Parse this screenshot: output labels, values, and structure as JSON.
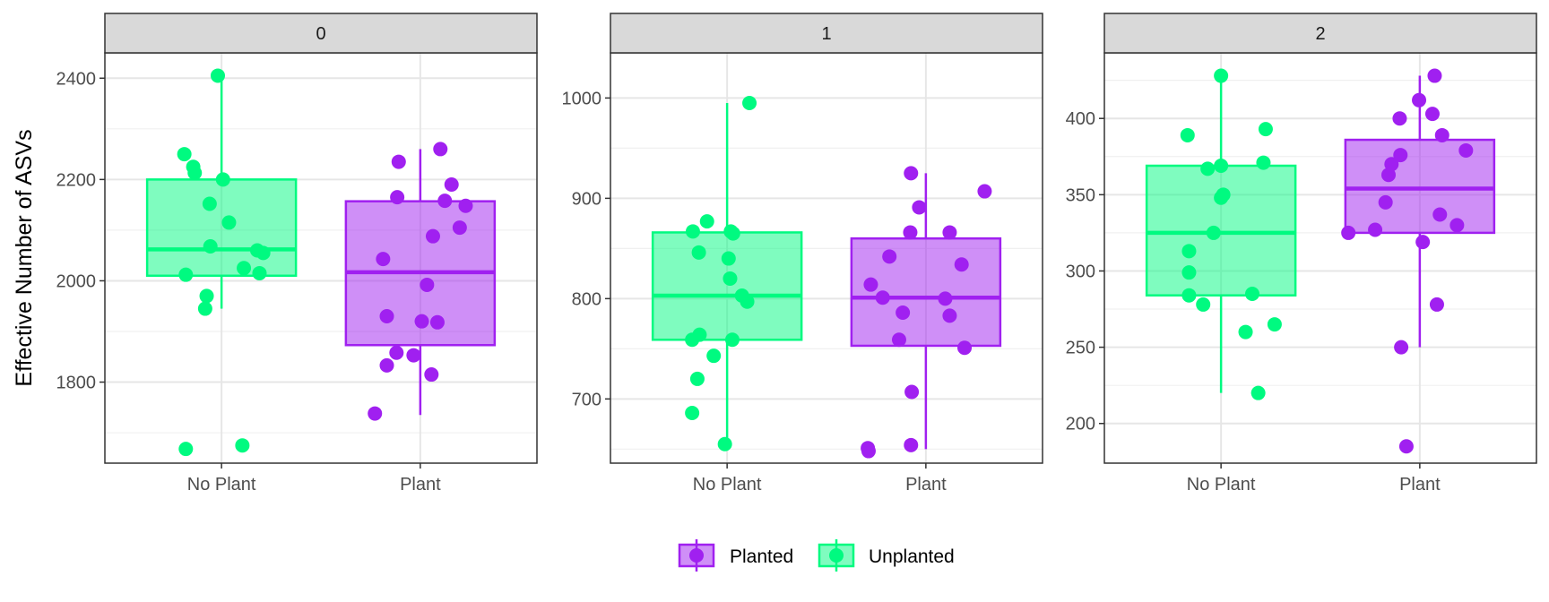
{
  "chart_data": {
    "type": "box",
    "ylabel": "Effective Number of ASVs",
    "colors": {
      "Planted": "#A020F0",
      "Unplanted": "#00FA80"
    },
    "legend": {
      "position": "bottom",
      "items": [
        {
          "name": "Planted",
          "color": "#A020F0"
        },
        {
          "name": "Unplanted",
          "color": "#00FA80"
        }
      ]
    },
    "categories": [
      "No Plant",
      "Plant"
    ],
    "facets": [
      {
        "label": "0",
        "ylim": [
          1640,
          2450
        ],
        "yticks": [
          1800,
          2000,
          2200,
          2400
        ],
        "groups": [
          {
            "category": "No Plant",
            "series": "Unplanted",
            "box": {
              "lower_whisker": 1945,
              "q1": 2010,
              "median": 2062,
              "q3": 2200,
              "upper_whisker": 2405
            },
            "points": [
              [
                -0.05,
                2405
              ],
              [
                -0.5,
                2250
              ],
              [
                -0.38,
                2225
              ],
              [
                -0.36,
                2213
              ],
              [
                0.02,
                2200
              ],
              [
                -0.16,
                2152
              ],
              [
                0.1,
                2115
              ],
              [
                -0.15,
                2068
              ],
              [
                0.48,
                2060
              ],
              [
                0.56,
                2055
              ],
              [
                -0.48,
                2012
              ],
              [
                0.3,
                2025
              ],
              [
                0.51,
                2015
              ],
              [
                -0.2,
                1970
              ],
              [
                -0.22,
                1945
              ],
              [
                0.28,
                1675
              ],
              [
                -0.48,
                1668
              ]
            ]
          },
          {
            "category": "Plant",
            "series": "Planted",
            "box": {
              "lower_whisker": 1735,
              "q1": 1873,
              "median": 2017,
              "q3": 2157,
              "upper_whisker": 2260
            },
            "points": [
              [
                0.27,
                2260
              ],
              [
                0.42,
                2190
              ],
              [
                0.33,
                2158
              ],
              [
                0.61,
                2148
              ],
              [
                0.53,
                2105
              ],
              [
                0.17,
                2088
              ],
              [
                -0.29,
                2235
              ],
              [
                -0.31,
                2165
              ],
              [
                -0.5,
                2043
              ],
              [
                0.09,
                1992
              ],
              [
                -0.45,
                1930
              ],
              [
                0.02,
                1920
              ],
              [
                0.23,
                1918
              ],
              [
                -0.32,
                1858
              ],
              [
                -0.09,
                1853
              ],
              [
                -0.45,
                1833
              ],
              [
                0.15,
                1815
              ],
              [
                -0.61,
                1738
              ]
            ]
          }
        ]
      },
      {
        "label": "1",
        "ylim": [
          636,
          1045
        ],
        "yticks": [
          700,
          800,
          900,
          1000
        ],
        "groups": [
          {
            "category": "No Plant",
            "series": "Unplanted",
            "box": {
              "lower_whisker": 655,
              "q1": 759,
              "median": 803,
              "q3": 866,
              "upper_whisker": 995
            },
            "points": [
              [
                0.3,
                995
              ],
              [
                -0.27,
                877
              ],
              [
                -0.46,
                867
              ],
              [
                0.05,
                867
              ],
              [
                0.08,
                865
              ],
              [
                -0.38,
                846
              ],
              [
                0.02,
                840
              ],
              [
                0.04,
                820
              ],
              [
                0.2,
                803
              ],
              [
                0.27,
                797
              ],
              [
                -0.47,
                759
              ],
              [
                -0.37,
                764
              ],
              [
                0.07,
                759
              ],
              [
                -0.18,
                743
              ],
              [
                -0.4,
                720
              ],
              [
                -0.47,
                686
              ],
              [
                -0.03,
                655
              ]
            ]
          },
          {
            "category": "Plant",
            "series": "Planted",
            "box": {
              "lower_whisker": 650,
              "q1": 753,
              "median": 801,
              "q3": 860,
              "upper_whisker": 925
            },
            "points": [
              [
                -0.2,
                925
              ],
              [
                0.79,
                907
              ],
              [
                -0.09,
                891
              ],
              [
                -0.21,
                866
              ],
              [
                0.32,
                866
              ],
              [
                -0.49,
                842
              ],
              [
                0.48,
                834
              ],
              [
                -0.74,
                814
              ],
              [
                -0.58,
                801
              ],
              [
                0.26,
                800
              ],
              [
                -0.31,
                786
              ],
              [
                0.32,
                783
              ],
              [
                -0.36,
                759
              ],
              [
                0.52,
                751
              ],
              [
                -0.19,
                707
              ],
              [
                -0.2,
                654
              ],
              [
                -0.78,
                651
              ],
              [
                -0.77,
                648
              ]
            ]
          }
        ]
      },
      {
        "label": "2",
        "ylim": [
          174,
          443
        ],
        "yticks": [
          200,
          250,
          300,
          350,
          400
        ],
        "groups": [
          {
            "category": "No Plant",
            "series": "Unplanted",
            "box": {
              "lower_whisker": 220,
              "q1": 284,
              "median": 325,
              "q3": 369,
              "upper_whisker": 428
            },
            "points": [
              [
                0.0,
                428
              ],
              [
                -0.45,
                389
              ],
              [
                0.6,
                393
              ],
              [
                0.57,
                371
              ],
              [
                -0.18,
                367
              ],
              [
                0.0,
                369
              ],
              [
                0.03,
                350
              ],
              [
                0.0,
                348
              ],
              [
                -0.1,
                325
              ],
              [
                -0.43,
                313
              ],
              [
                -0.43,
                299
              ],
              [
                -0.43,
                284
              ],
              [
                0.42,
                285
              ],
              [
                -0.24,
                278
              ],
              [
                0.72,
                265
              ],
              [
                0.33,
                260
              ],
              [
                0.5,
                220
              ]
            ]
          },
          {
            "category": "Plant",
            "series": "Planted",
            "box": {
              "lower_whisker": 250,
              "q1": 325,
              "median": 354,
              "q3": 386,
              "upper_whisker": 428
            },
            "points": [
              [
                0.2,
                428
              ],
              [
                -0.01,
                412
              ],
              [
                0.17,
                403
              ],
              [
                -0.27,
                400
              ],
              [
                0.3,
                389
              ],
              [
                0.62,
                379
              ],
              [
                -0.26,
                376
              ],
              [
                -0.38,
                370
              ],
              [
                -0.42,
                363
              ],
              [
                -0.46,
                345
              ],
              [
                0.27,
                337
              ],
              [
                0.5,
                330
              ],
              [
                -0.6,
                327
              ],
              [
                -0.96,
                325
              ],
              [
                0.04,
                319
              ],
              [
                0.23,
                278
              ],
              [
                -0.25,
                250
              ],
              [
                -0.18,
                185
              ]
            ]
          }
        ]
      }
    ]
  }
}
